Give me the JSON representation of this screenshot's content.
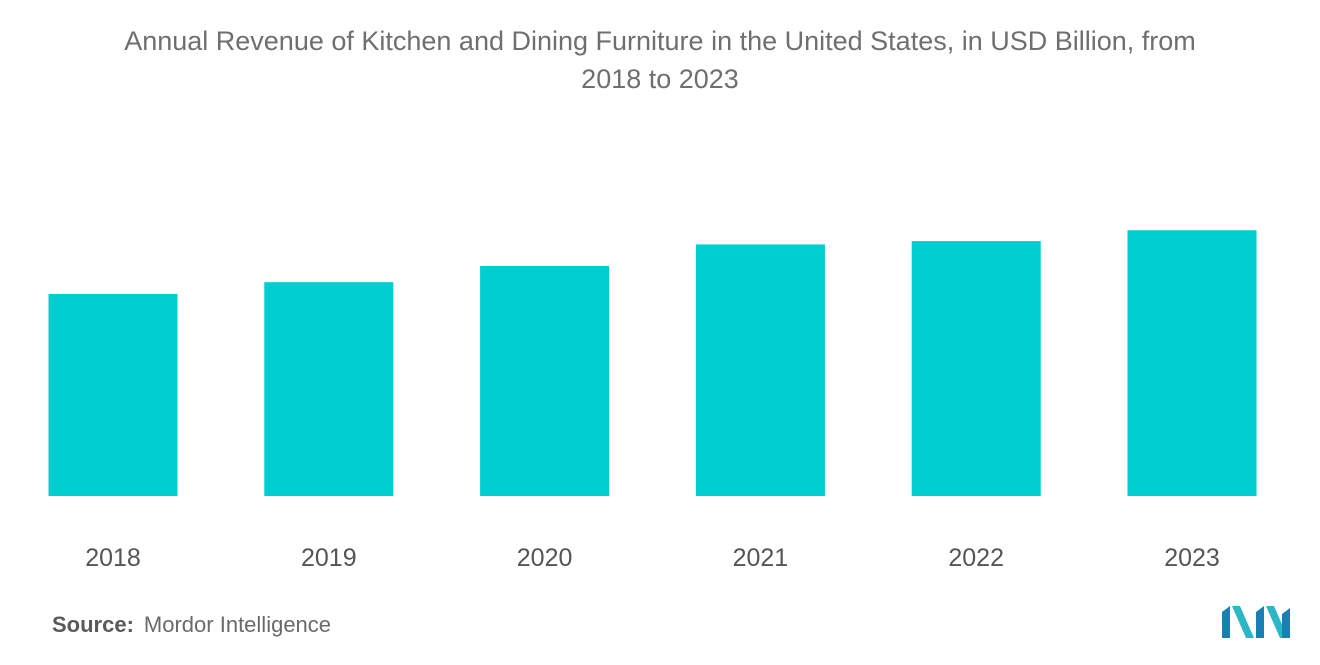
{
  "chart_data": {
    "type": "bar",
    "title_line1": "Annual Revenue of Kitchen and Dining Furniture in the United States, in USD Billion, from",
    "title_line2": "2018 to 2023",
    "xlabel": "",
    "ylabel": "",
    "categories": [
      "2018",
      "2019",
      "2020",
      "2021",
      "2022",
      "2023"
    ],
    "values": [
      18.7,
      19.8,
      21.3,
      23.3,
      23.6,
      24.6
    ],
    "ylim": [
      0,
      25
    ],
    "grid": false,
    "bar_color": "#00CED1"
  },
  "source": {
    "label": "Source:",
    "text": "Mordor Intelligence"
  },
  "logo": {
    "icon": "mordor-intelligence-logo",
    "colors": [
      "#1a7fb3",
      "#2db5c8"
    ]
  }
}
